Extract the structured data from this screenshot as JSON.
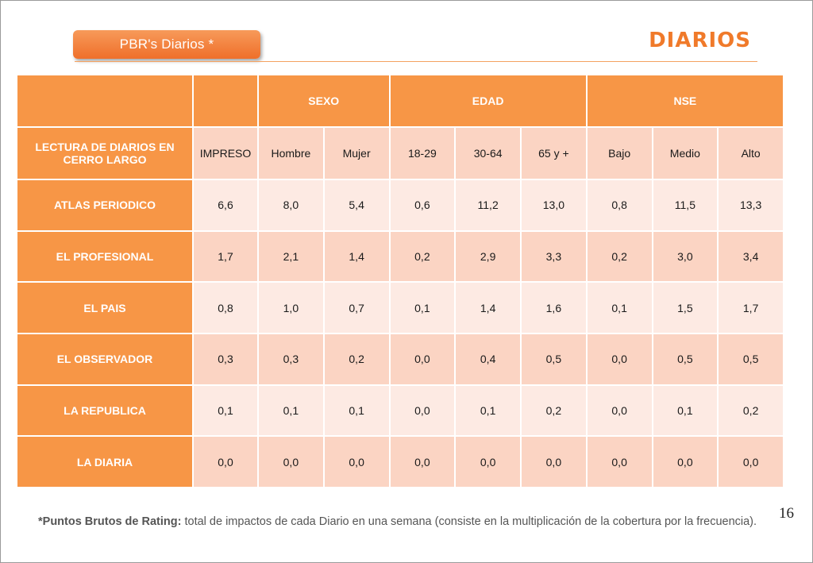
{
  "header": {
    "tab_label": "PBR's Diarios  *",
    "title": "DIARIOS"
  },
  "table": {
    "groups": [
      "SEXO",
      "EDAD",
      "NSE"
    ],
    "row_header_label": "LECTURA DE DIARIOS EN CERRO LARGO",
    "columns": [
      "IMPRESO",
      "Hombre",
      "Mujer",
      "18-29",
      "30-64",
      "65 y +",
      "Bajo",
      "Medio",
      "Alto"
    ],
    "rows": [
      {
        "label": "ATLAS PERIODICO",
        "values": [
          "6,6",
          "8,0",
          "5,4",
          "0,6",
          "11,2",
          "13,0",
          "0,8",
          "11,5",
          "13,3"
        ]
      },
      {
        "label": "EL PROFESIONAL",
        "values": [
          "1,7",
          "2,1",
          "1,4",
          "0,2",
          "2,9",
          "3,3",
          "0,2",
          "3,0",
          "3,4"
        ]
      },
      {
        "label": "EL PAIS",
        "values": [
          "0,8",
          "1,0",
          "0,7",
          "0,1",
          "1,4",
          "1,6",
          "0,1",
          "1,5",
          "1,7"
        ]
      },
      {
        "label": "EL OBSERVADOR",
        "values": [
          "0,3",
          "0,3",
          "0,2",
          "0,0",
          "0,4",
          "0,5",
          "0,0",
          "0,5",
          "0,5"
        ]
      },
      {
        "label": "LA REPUBLICA",
        "values": [
          "0,1",
          "0,1",
          "0,1",
          "0,0",
          "0,1",
          "0,2",
          "0,0",
          "0,1",
          "0,2"
        ]
      },
      {
        "label": "LA DIARIA",
        "values": [
          "0,0",
          "0,0",
          "0,0",
          "0,0",
          "0,0",
          "0,0",
          "0,0",
          "0,0",
          "0,0"
        ]
      }
    ]
  },
  "footer": {
    "page_number": "16",
    "footnote_bold": "*Puntos Brutos de Rating:",
    "footnote_text": " total de impactos de cada Diario en una semana (consiste en la multiplicación de la cobertura por la frecuencia)."
  },
  "colors": {
    "accent": "#f79646",
    "title": "#f07a2a",
    "row_light": "#fdeae3",
    "row_dark": "#fbd4c3"
  }
}
